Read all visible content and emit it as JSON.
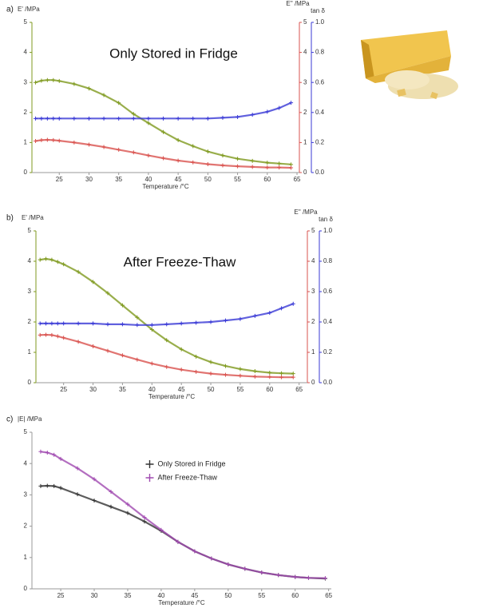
{
  "chart_data": [
    {
      "type": "line",
      "panel": "a)",
      "annotation": "Only Stored in Fridge",
      "xlabel": "Temperature /°C",
      "ylabel": "E' /MPa",
      "y3label": "E'' /MPa",
      "y2label": "tan δ",
      "x": [
        21,
        22,
        23,
        24,
        25,
        27.5,
        30,
        32.5,
        35,
        37.5,
        40,
        42.5,
        45,
        47.5,
        50,
        52.5,
        55,
        57.5,
        60,
        62,
        64
      ],
      "xlim": [
        20.4,
        65.4
      ],
      "xticks": [
        25,
        30,
        35,
        40,
        45,
        50,
        55,
        60,
        65
      ],
      "ylim": [
        0,
        5
      ],
      "yticks": [
        0,
        1,
        2,
        3,
        4,
        5
      ],
      "y3lim": [
        0,
        5
      ],
      "y3ticks": [
        0,
        1,
        2,
        3,
        4,
        5
      ],
      "y2lim": [
        0,
        1
      ],
      "y2ticks": [
        {
          "value": 0,
          "label": "0.0"
        },
        0.2,
        0.4,
        0.6,
        0.8,
        {
          "value": 1,
          "label": "1.0"
        }
      ],
      "series": [
        {
          "color": "#7f9a1f",
          "axis": "y",
          "values": [
            3.0,
            3.06,
            3.08,
            3.08,
            3.05,
            2.95,
            2.8,
            2.58,
            2.32,
            1.95,
            1.65,
            1.35,
            1.08,
            0.88,
            0.7,
            0.57,
            0.46,
            0.39,
            0.33,
            0.3,
            0.27
          ]
        },
        {
          "color": "#d9534f",
          "axis": "y3",
          "values": [
            1.05,
            1.08,
            1.09,
            1.08,
            1.06,
            1.0,
            0.93,
            0.85,
            0.76,
            0.67,
            0.57,
            0.48,
            0.4,
            0.34,
            0.28,
            0.24,
            0.21,
            0.19,
            0.17,
            0.17,
            0.16
          ]
        },
        {
          "color": "#3a3ad6",
          "axis": "y2",
          "values": [
            0.36,
            0.36,
            0.36,
            0.36,
            0.36,
            0.36,
            0.36,
            0.36,
            0.36,
            0.36,
            0.36,
            0.36,
            0.36,
            0.36,
            0.36,
            0.365,
            0.37,
            0.385,
            0.405,
            0.43,
            0.465
          ]
        }
      ]
    },
    {
      "type": "line",
      "panel": "b)",
      "annotation": "After Freeze-Thaw",
      "xlabel": "Temperature /°C",
      "ylabel": "E' /MPa",
      "y3label": "E'' /MPa",
      "y2label": "tan δ",
      "x": [
        21,
        22,
        23,
        24,
        25,
        27.5,
        30,
        32.5,
        35,
        37.5,
        40,
        42.5,
        45,
        47.5,
        50,
        52.5,
        55,
        57.5,
        60,
        62,
        64
      ],
      "xlim": [
        20.3,
        66.4
      ],
      "xticks": [
        25,
        30,
        35,
        40,
        45,
        50,
        55,
        60,
        65
      ],
      "ylim": [
        0,
        5
      ],
      "yticks": [
        0,
        1,
        2,
        3,
        4,
        5
      ],
      "y3lim": [
        0,
        5
      ],
      "y3ticks": [
        0,
        1,
        2,
        3,
        4,
        5
      ],
      "y2lim": [
        0,
        1
      ],
      "y2ticks": [
        {
          "value": 0,
          "label": "0.0"
        },
        0.2,
        0.4,
        0.6,
        0.8,
        {
          "value": 1,
          "label": "1.0"
        }
      ],
      "series": [
        {
          "color": "#7f9a1f",
          "axis": "y",
          "values": [
            4.05,
            4.08,
            4.05,
            3.98,
            3.9,
            3.65,
            3.32,
            2.95,
            2.55,
            2.15,
            1.75,
            1.4,
            1.1,
            0.86,
            0.68,
            0.55,
            0.45,
            0.38,
            0.33,
            0.31,
            0.3
          ]
        },
        {
          "color": "#d9534f",
          "axis": "y3",
          "values": [
            1.57,
            1.58,
            1.57,
            1.53,
            1.48,
            1.35,
            1.2,
            1.05,
            0.9,
            0.76,
            0.63,
            0.52,
            0.43,
            0.36,
            0.3,
            0.26,
            0.23,
            0.2,
            0.19,
            0.18,
            0.18
          ]
        },
        {
          "color": "#3a3ad6",
          "axis": "y2",
          "values": [
            0.39,
            0.39,
            0.39,
            0.39,
            0.39,
            0.39,
            0.39,
            0.385,
            0.385,
            0.38,
            0.38,
            0.385,
            0.39,
            0.395,
            0.4,
            0.41,
            0.42,
            0.44,
            0.46,
            0.49,
            0.52
          ]
        }
      ]
    },
    {
      "type": "line",
      "panel": "c)",
      "legend": "upper center",
      "xlabel": "Temperature /°C",
      "ylabel": "|E| /MPa",
      "x": [
        22,
        23,
        24,
        25,
        27.5,
        30,
        32.5,
        35,
        37.5,
        40,
        42.5,
        45,
        47.5,
        50,
        52.5,
        55,
        57.5,
        60,
        62,
        64.5
      ],
      "xlim": [
        20.7,
        65.4
      ],
      "xticks": [
        25,
        30,
        35,
        40,
        45,
        50,
        55,
        60,
        65
      ],
      "ylim": [
        0,
        5
      ],
      "yticks": [
        0,
        1,
        2,
        3,
        4,
        5
      ],
      "series": [
        {
          "name": "Only Stored in Fridge",
          "color": "#333333",
          "axis": "y",
          "values": [
            3.28,
            3.29,
            3.28,
            3.22,
            3.02,
            2.82,
            2.62,
            2.42,
            2.15,
            1.85,
            1.5,
            1.2,
            0.97,
            0.78,
            0.64,
            0.52,
            0.44,
            0.38,
            0.35,
            0.33
          ]
        },
        {
          "name": "After Freeze-Thaw",
          "color": "#a04ab0",
          "axis": "y",
          "values": [
            4.38,
            4.35,
            4.28,
            4.15,
            3.85,
            3.5,
            3.1,
            2.7,
            2.28,
            1.88,
            1.5,
            1.2,
            0.97,
            0.78,
            0.64,
            0.52,
            0.44,
            0.38,
            0.35,
            0.34
          ]
        }
      ]
    }
  ]
}
